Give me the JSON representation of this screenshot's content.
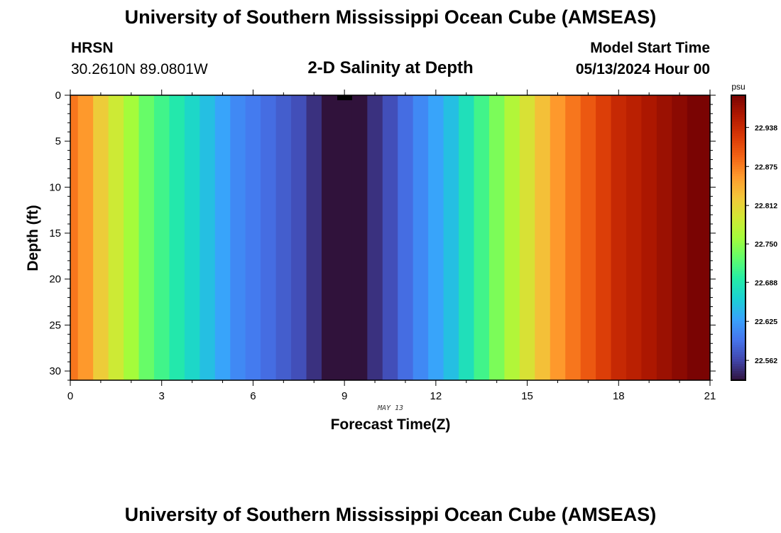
{
  "header": {
    "title": "University of Southern Mississippi Ocean Cube (AMSEAS)",
    "station": "HRSN",
    "coords": "30.2610N  89.0801W",
    "subtitle": "2-D Salinity at Depth",
    "model_start_label": "Model Start Time",
    "model_start_value": "05/13/2024 Hour 00"
  },
  "footer": {
    "title": "University of Southern Mississippi Ocean Cube (AMSEAS)"
  },
  "chart_data": {
    "type": "heatmap",
    "xlabel": "Forecast Time(Z)",
    "ylabel": "Depth (ft)",
    "date_label": "MAY 13",
    "x_ticks": [
      0,
      3,
      6,
      9,
      12,
      15,
      18,
      21
    ],
    "y_ticks": [
      0,
      5,
      10,
      15,
      20,
      25,
      30
    ],
    "xlim": [
      0,
      21
    ],
    "ylim": [
      0,
      31
    ],
    "y_inverted": true,
    "colorbar": {
      "unit": "psu",
      "ticks": [
        "22.562",
        "22.625",
        "22.688",
        "22.750",
        "22.812",
        "22.875",
        "22.938"
      ],
      "range": [
        22.53,
        22.99
      ],
      "colors": [
        "#30123b",
        "#4145ab",
        "#4675ed",
        "#39a2fc",
        "#1bcfd4",
        "#24eca6",
        "#61fc6c",
        "#a4fc3b",
        "#d1e834",
        "#f3c63a",
        "#fe9b2d",
        "#f36315",
        "#d93806",
        "#b11901",
        "#7a0403"
      ]
    },
    "time_hours": [
      0,
      0.5,
      1,
      1.5,
      2,
      2.5,
      3,
      3.5,
      4,
      4.5,
      5,
      5.5,
      6,
      6.5,
      7,
      7.5,
      8,
      8.5,
      9,
      9.5,
      10,
      10.5,
      11,
      11.5,
      12,
      12.5,
      13,
      13.5,
      14,
      14.5,
      15,
      15.5,
      16,
      16.5,
      17,
      17.5,
      18,
      18.5,
      19,
      19.5,
      20,
      20.5,
      21
    ],
    "salinity_psu": [
      22.88,
      22.86,
      22.82,
      22.79,
      22.76,
      22.73,
      22.71,
      22.69,
      22.67,
      22.65,
      22.63,
      22.61,
      22.6,
      22.59,
      22.58,
      22.57,
      22.55,
      22.53,
      22.53,
      22.53,
      22.55,
      22.57,
      22.59,
      22.61,
      22.63,
      22.65,
      22.68,
      22.71,
      22.74,
      22.77,
      22.8,
      22.83,
      22.86,
      22.88,
      22.9,
      22.92,
      22.94,
      22.95,
      22.96,
      22.97,
      22.98,
      22.99,
      22.99
    ]
  }
}
